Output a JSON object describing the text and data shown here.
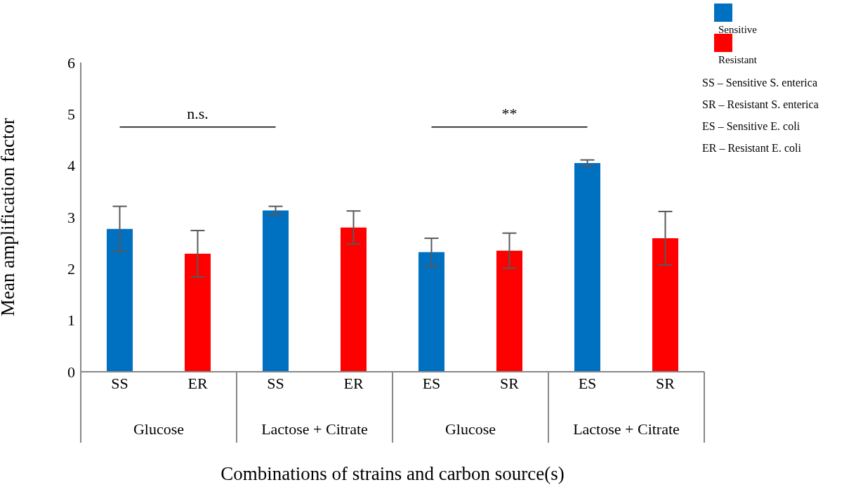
{
  "chart_data": {
    "type": "bar",
    "xlabel": "Combinations of strains and carbon source(s)",
    "ylabel": "Mean amplification factor",
    "categories": [
      "SS",
      "ER",
      "SS",
      "ER",
      "ES",
      "SR",
      "ES",
      "SR"
    ],
    "series": [
      {
        "name": "Sensitive",
        "color": "#0070c0",
        "values": [
          2.77,
          null,
          3.13,
          null,
          2.32,
          null,
          4.05,
          null
        ],
        "errors": [
          0.44,
          null,
          0.08,
          null,
          0.27,
          null,
          0.06,
          null
        ]
      },
      {
        "name": "Resistant",
        "color": "#ff0000",
        "values": [
          null,
          2.29,
          null,
          2.8,
          null,
          2.35,
          null,
          2.59
        ],
        "errors": [
          null,
          0.45,
          null,
          0.32,
          null,
          0.34,
          null,
          0.52
        ]
      }
    ],
    "stacked": true,
    "ylim": [
      0,
      6
    ],
    "yticks": [
      0,
      1,
      2,
      3,
      4,
      5,
      6
    ],
    "grid": false,
    "legend": "top right",
    "annotations": [
      "n.s.",
      "**",
      "SS – Sensitive S. enterica",
      "SR – Resistant S. enterica",
      "ES – Sensitive E. coli",
      "ER – Resistant E. coli",
      "Glucose",
      "Lactose + Citrate",
      "Glucose",
      "Lactose + Citrate"
    ]
  }
}
